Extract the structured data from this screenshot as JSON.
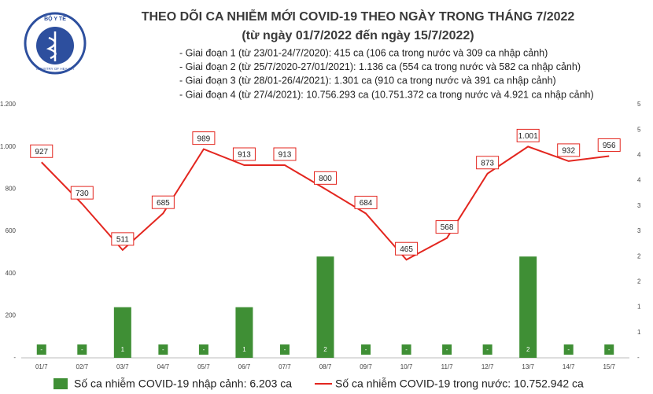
{
  "chart_data": {
    "type": "bar_line",
    "logo": {
      "top": "BỘ Y TẾ",
      "bottom": "MINISTRY OF HEALTH"
    },
    "title": "THEO DÕI CA NHIỄM MỚI COVID-19 THEO NGÀY TRONG THÁNG 7/2022",
    "subtitle": "(từ ngày 01/7/2022 đến ngày 15/7/2022)",
    "notes": [
      "- Giai đoạn 1 (từ 23/01-24/7/2020): 415 ca (106 ca trong nước và 309 ca nhập cảnh)",
      "- Giai đoạn 2 (từ 25/7/2020-27/01/2021): 1.136 ca (554 ca trong nước và 582 ca nhập cảnh)",
      "- Giai đoạn 3 (từ 28/01-26/4/2021): 1.301 ca (910 ca trong nước và 391 ca nhập cảnh)",
      "- Giai đoạn 4 (từ 27/4/2021): 10.756.293 ca (10.751.372 ca trong nước và 4.921 ca nhập cảnh)"
    ],
    "categories": [
      "01/7",
      "02/7",
      "03/7",
      "04/7",
      "05/7",
      "06/7",
      "07/7",
      "08/7",
      "09/7",
      "10/7",
      "11/7",
      "12/7",
      "13/7",
      "14/7",
      "15/7"
    ],
    "series": [
      {
        "name": "Số ca nhiễm COVID-19 nhập cảnh: 6.203 ca",
        "type": "bar",
        "axis": "y2",
        "color": "#3f8f35",
        "values": [
          0,
          0,
          1,
          0,
          0,
          1,
          0,
          2,
          0,
          0,
          0,
          0,
          2,
          0,
          0
        ],
        "value_labels": [
          "-",
          "-",
          "1",
          "-",
          "-",
          "1",
          "-",
          "2",
          "-",
          "-",
          "-",
          "-",
          "2",
          "-",
          "-"
        ]
      },
      {
        "name": "Số ca nhiễm COVID-19 trong nước: 10.752.942 ca",
        "type": "line",
        "axis": "y",
        "color": "#e3261f",
        "values": [
          927,
          730,
          511,
          685,
          989,
          913,
          913,
          800,
          684,
          465,
          568,
          873,
          1001,
          932,
          956
        ],
        "value_labels": [
          "927",
          "730",
          "511",
          "685",
          "989",
          "913",
          "913",
          "800",
          "684",
          "465",
          "568",
          "873",
          "1.001",
          "932",
          "956"
        ]
      }
    ],
    "ylim": [
      0,
      1200
    ],
    "yticks": [
      {
        "value": 0,
        "label": "-"
      },
      200,
      400,
      600,
      800,
      {
        "value": 1000,
        "label": "1.000"
      },
      {
        "value": 1200,
        "label": "1.200"
      }
    ],
    "y2lim": [
      0,
      5
    ],
    "y2ticks": [
      {
        "value": 0,
        "label": "-"
      },
      {
        "value": 0.5,
        "label": "1"
      },
      1,
      {
        "value": 1.5,
        "label": "2"
      },
      2,
      {
        "value": 2.5,
        "label": "3"
      },
      3,
      {
        "value": 3.5,
        "label": "4"
      },
      4,
      {
        "value": 4.5,
        "label": "5"
      },
      5
    ],
    "grid": false,
    "legend": "bottom"
  }
}
